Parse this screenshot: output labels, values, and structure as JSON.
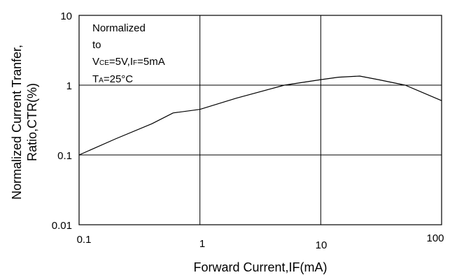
{
  "chart_data": {
    "type": "line",
    "xlabel": "Forward Current,IF(mA)",
    "ylabel_line1": "Normalized Current Tranfer,",
    "ylabel_line2": "Ratio,CTR(%)",
    "x_scale": "log",
    "y_scale": "log",
    "xlim": [
      0.1,
      100
    ],
    "ylim": [
      0.01,
      10
    ],
    "x_ticks": [
      "0.1",
      "1",
      "10",
      "100"
    ],
    "y_ticks": [
      "0.01",
      "0.1",
      "1",
      "10"
    ],
    "grid": true,
    "annotation": {
      "line1": "Normalized",
      "line2": "to",
      "v_main": "V",
      "v_sub": "CE",
      "v_mid": "=5V,I",
      "i_sub": "F",
      "i_end": "=5mA",
      "t_main": "T",
      "t_sub": "A",
      "t_end": "=25°C"
    },
    "series": [
      {
        "x": [
          0.1,
          0.2,
          0.4,
          0.6,
          1.0,
          2.0,
          5.0,
          10,
          14,
          21,
          30,
          50,
          100
        ],
        "y": [
          0.1,
          0.17,
          0.28,
          0.4,
          0.45,
          0.65,
          1.0,
          1.2,
          1.3,
          1.35,
          1.2,
          1.0,
          0.6
        ]
      }
    ]
  }
}
